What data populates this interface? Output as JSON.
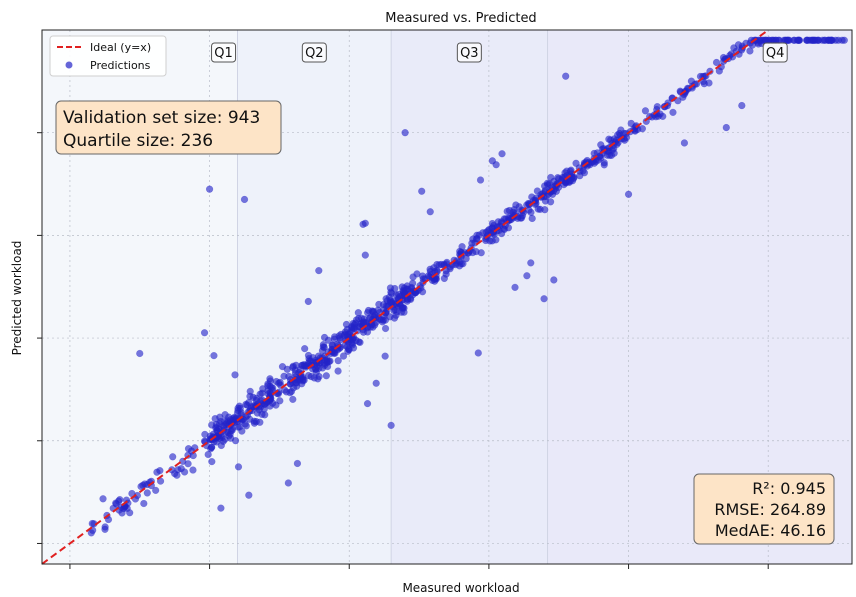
{
  "chart_data": {
    "type": "scatter",
    "title": "Measured vs. Predicted",
    "xlabel": "Measured workload",
    "ylabel": "Predicted workload",
    "xlim": [
      -0.2,
      5.6
    ],
    "ylim": [
      -0.2,
      5.0
    ],
    "x_ticks": [
      0,
      1,
      2,
      3,
      4,
      5
    ],
    "y_ticks": [
      0,
      1,
      2,
      3,
      4
    ],
    "tick_labels_visible": false,
    "grid": true,
    "legend_position": "top-left",
    "quartile_bands": [
      {
        "label": "Q1",
        "from": -0.2,
        "to": 1.2,
        "color": "#f4f7fb"
      },
      {
        "label": "Q2",
        "from": 1.2,
        "to": 2.3,
        "color": "#eef2fa"
      },
      {
        "label": "Q3",
        "from": 2.3,
        "to": 3.42,
        "color": "#e9ebf9"
      },
      {
        "label": "Q4",
        "from": 3.42,
        "to": 5.6,
        "color": "#e9e9f9"
      }
    ],
    "series": [
      {
        "name": "Ideal (y=x)",
        "kind": "line",
        "color": "#e02020",
        "style": "dashed",
        "x": [
          -0.2,
          5.6
        ],
        "y": [
          -0.2,
          5.6
        ]
      },
      {
        "name": "Predictions",
        "kind": "scatter",
        "color": "#2424c8",
        "x": [],
        "y": []
      }
    ],
    "annotations": {
      "top_left": [
        "Validation set size: 943",
        "Quartile size: 236"
      ],
      "bottom_right": [
        "R²: 0.945",
        "RMSE: 264.89",
        "MedAE: 46.16"
      ]
    }
  },
  "colors": {
    "scatter": "#2424c8",
    "ideal_line": "#e02020",
    "annotation_fill": "#fde4c7"
  }
}
